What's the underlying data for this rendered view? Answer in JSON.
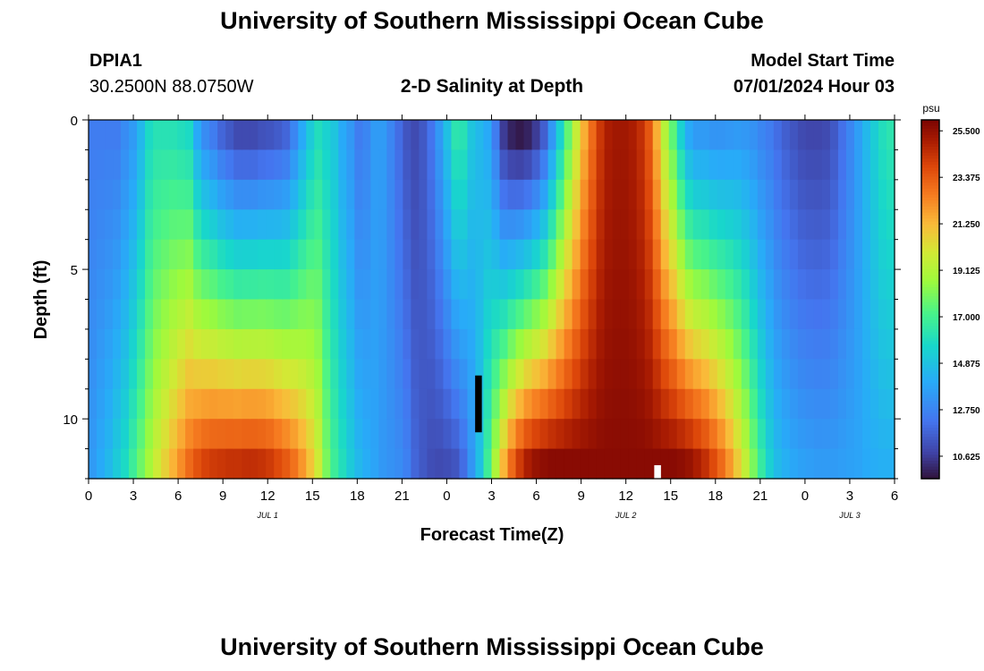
{
  "header": {
    "title": "University of Southern Mississippi Ocean Cube",
    "station_id": "DPIA1",
    "coords": "30.2500N  88.0750W",
    "plot_title": "2-D Salinity at Depth",
    "model_start_label": "Model Start Time",
    "model_start_value": "07/01/2024 Hour 03"
  },
  "footer": {
    "title": "University of Southern Mississippi Ocean Cube"
  },
  "chart_data": {
    "type": "heatmap",
    "title": "2-D Salinity at Depth",
    "xlabel": "Forecast Time(Z)",
    "ylabel": "Depth (ft)",
    "x_ticks": [
      "0",
      "3",
      "6",
      "9",
      "12",
      "15",
      "18",
      "21",
      "0",
      "3",
      "6",
      "9",
      "12",
      "15",
      "18",
      "21",
      "0",
      "3",
      "6"
    ],
    "date_labels": [
      {
        "label": "JUL 1",
        "hour": 12
      },
      {
        "label": "JUL 2",
        "hour": 36
      },
      {
        "label": "JUL 3",
        "hour": 51
      }
    ],
    "xlim": [
      0,
      54
    ],
    "y_ticks": [
      0,
      5,
      10
    ],
    "ylim": [
      0,
      12
    ],
    "depth_levels": [
      0,
      1,
      2,
      3,
      4,
      5,
      6,
      7,
      8,
      9,
      10,
      11
    ],
    "colorbar": {
      "unit": "psu",
      "ticks": [
        "25.500",
        "23.375",
        "21.250",
        "19.125",
        "17.000",
        "14.875",
        "12.750",
        "10.625"
      ],
      "range": [
        9.6,
        26.0
      ]
    },
    "surface_salinity_psu": [
      12.5,
      12.5,
      12.5,
      12.5,
      13,
      13.5,
      14.5,
      15.8,
      16.2,
      16.2,
      16.2,
      16.0,
      15.8,
      14,
      13,
      12.5,
      11.8,
      11.4,
      11.0,
      11.0,
      11.0,
      11.2,
      11.3,
      11.5,
      11.8,
      12.8,
      14,
      15.2,
      16,
      15.5,
      15,
      14,
      13.4,
      12.5,
      12.8,
      13.5,
      13.5,
      12.8,
      12.0,
      11.3,
      11.0,
      11.4,
      12.2,
      13.4,
      14.8,
      16.3,
      16.2,
      15,
      14.5,
      14,
      12.5,
      10.6,
      10.0,
      9.8,
      10.0,
      10.6,
      11.6,
      13.4,
      15.5,
      17.6,
      19.6,
      21.5,
      23,
      24.3,
      25.0,
      25.2,
      25.2,
      25.0,
      24.5,
      23.5,
      21.5,
      19.2,
      17.5,
      15.5,
      14,
      13.5,
      13.5,
      13.3,
      13.3,
      13.4,
      13.5,
      13.4,
      13.2,
      12.8,
      12.5,
      12.0,
      11.6,
      11.3,
      11.0,
      10.9,
      10.9,
      11.0,
      11.4,
      12.1,
      12.8,
      13.6,
      14.5,
      15.3,
      16.0,
      16.3
    ],
    "bottom_salinity_psu": [
      13.5,
      14,
      14.5,
      15.2,
      15.8,
      16.8,
      17.8,
      18.8,
      19.8,
      20.6,
      21.4,
      22.2,
      23.0,
      23.6,
      24.0,
      24.2,
      24.3,
      24.4,
      24.4,
      24.5,
      24.5,
      24.4,
      24.2,
      23.8,
      23.4,
      22.8,
      22.0,
      21.0,
      19.8,
      18.0,
      16.8,
      16.0,
      15.2,
      14.5,
      14.1,
      13.8,
      13.4,
      13.2,
      13.0,
      12.6,
      11.8,
      11.4,
      11.1,
      11.0,
      11.1,
      11.3,
      12.0,
      13.3,
      14.8,
      16.8,
      19.0,
      21.3,
      23.0,
      24.2,
      25.0,
      25.4,
      25.6,
      25.7,
      25.7,
      25.7,
      25.7,
      25.7,
      25.7,
      25.7,
      25.7,
      25.7,
      25.7,
      25.7,
      25.7,
      25.7,
      25.7,
      25.7,
      25.7,
      25.6,
      25.4,
      25.0,
      24.5,
      23.8,
      23.0,
      22.0,
      20.8,
      19.5,
      18.0,
      16.6,
      15.4,
      14.6,
      14.2,
      13.9,
      13.7,
      13.6,
      13.5,
      13.5,
      13.5,
      13.6,
      13.7,
      13.8,
      14.0,
      14.1,
      14.2,
      14.2
    ],
    "missing_cells": [
      {
        "hour": 26,
        "depths_ft": [
          9,
          10
        ],
        "color": "#000000"
      },
      {
        "hour": 38,
        "depths_ft": [
          12
        ],
        "color": "#ffffff"
      }
    ]
  }
}
